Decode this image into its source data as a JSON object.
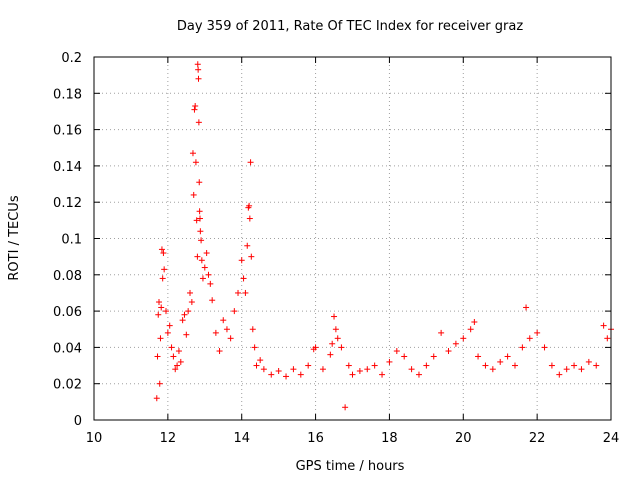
{
  "chart_data": {
    "type": "scatter",
    "title": "Day 359 of 2011, Rate Of TEC Index for receiver graz",
    "xlabel": "GPS time / hours",
    "ylabel": "ROTI / TECUs",
    "xlim": [
      10,
      24
    ],
    "ylim": [
      0,
      0.2
    ],
    "x_ticks": [
      10,
      12,
      14,
      16,
      18,
      20,
      22,
      24
    ],
    "x_tick_labels": [
      "10",
      "12",
      "14",
      "16",
      "18",
      "20",
      "22",
      "24"
    ],
    "y_ticks": [
      0,
      0.02,
      0.04,
      0.06,
      0.08,
      0.1,
      0.12,
      0.14,
      0.16,
      0.18,
      0.2
    ],
    "y_tick_labels": [
      "0",
      "0.02",
      "0.04",
      "0.06",
      "0.08",
      "0.1",
      "0.12",
      "0.14",
      "0.16",
      "0.18",
      "0.2"
    ],
    "grid": true,
    "marker": "+",
    "color": "#ff0000",
    "series": [
      {
        "name": "ROTI",
        "points": [
          [
            11.7,
            0.012
          ],
          [
            11.72,
            0.035
          ],
          [
            11.74,
            0.058
          ],
          [
            11.76,
            0.065
          ],
          [
            11.78,
            0.02
          ],
          [
            11.8,
            0.045
          ],
          [
            11.82,
            0.062
          ],
          [
            11.84,
            0.094
          ],
          [
            11.86,
            0.078
          ],
          [
            11.88,
            0.092
          ],
          [
            11.9,
            0.083
          ],
          [
            11.95,
            0.06
          ],
          [
            12.0,
            0.048
          ],
          [
            12.05,
            0.052
          ],
          [
            12.1,
            0.04
          ],
          [
            12.15,
            0.035
          ],
          [
            12.2,
            0.028
          ],
          [
            12.25,
            0.03
          ],
          [
            12.3,
            0.038
          ],
          [
            12.35,
            0.032
          ],
          [
            12.4,
            0.055
          ],
          [
            12.45,
            0.058
          ],
          [
            12.5,
            0.047
          ],
          [
            12.55,
            0.06
          ],
          [
            12.6,
            0.07
          ],
          [
            12.65,
            0.065
          ],
          [
            12.68,
            0.147
          ],
          [
            12.7,
            0.124
          ],
          [
            12.72,
            0.171
          ],
          [
            12.74,
            0.173
          ],
          [
            12.76,
            0.142
          ],
          [
            12.78,
            0.11
          ],
          [
            12.8,
            0.09
          ],
          [
            12.81,
            0.196
          ],
          [
            12.82,
            0.193
          ],
          [
            12.83,
            0.188
          ],
          [
            12.84,
            0.164
          ],
          [
            12.85,
            0.131
          ],
          [
            12.86,
            0.115
          ],
          [
            12.87,
            0.111
          ],
          [
            12.88,
            0.104
          ],
          [
            12.9,
            0.099
          ],
          [
            12.92,
            0.088
          ],
          [
            12.95,
            0.078
          ],
          [
            13.0,
            0.084
          ],
          [
            13.05,
            0.092
          ],
          [
            13.1,
            0.08
          ],
          [
            13.15,
            0.075
          ],
          [
            13.2,
            0.066
          ],
          [
            13.3,
            0.048
          ],
          [
            13.4,
            0.038
          ],
          [
            13.5,
            0.055
          ],
          [
            13.6,
            0.05
          ],
          [
            13.7,
            0.045
          ],
          [
            13.8,
            0.06
          ],
          [
            13.9,
            0.07
          ],
          [
            14.0,
            0.088
          ],
          [
            14.05,
            0.078
          ],
          [
            14.1,
            0.07
          ],
          [
            14.15,
            0.096
          ],
          [
            14.18,
            0.117
          ],
          [
            14.2,
            0.118
          ],
          [
            14.22,
            0.111
          ],
          [
            14.24,
            0.142
          ],
          [
            14.26,
            0.09
          ],
          [
            14.3,
            0.05
          ],
          [
            14.35,
            0.04
          ],
          [
            14.4,
            0.03
          ],
          [
            14.5,
            0.033
          ],
          [
            14.6,
            0.028
          ],
          [
            14.8,
            0.025
          ],
          [
            15.0,
            0.027
          ],
          [
            15.2,
            0.024
          ],
          [
            15.4,
            0.028
          ],
          [
            15.6,
            0.025
          ],
          [
            15.8,
            0.03
          ],
          [
            15.95,
            0.039
          ],
          [
            16.0,
            0.04
          ],
          [
            16.2,
            0.028
          ],
          [
            16.4,
            0.036
          ],
          [
            16.45,
            0.042
          ],
          [
            16.5,
            0.057
          ],
          [
            16.55,
            0.05
          ],
          [
            16.6,
            0.045
          ],
          [
            16.7,
            0.04
          ],
          [
            16.8,
            0.007
          ],
          [
            16.9,
            0.03
          ],
          [
            17.0,
            0.025
          ],
          [
            17.2,
            0.027
          ],
          [
            17.4,
            0.028
          ],
          [
            17.6,
            0.03
          ],
          [
            17.8,
            0.025
          ],
          [
            18.0,
            0.032
          ],
          [
            18.2,
            0.038
          ],
          [
            18.4,
            0.035
          ],
          [
            18.6,
            0.028
          ],
          [
            18.8,
            0.025
          ],
          [
            19.0,
            0.03
          ],
          [
            19.2,
            0.035
          ],
          [
            19.4,
            0.048
          ],
          [
            19.6,
            0.038
          ],
          [
            19.8,
            0.042
          ],
          [
            20.0,
            0.045
          ],
          [
            20.2,
            0.05
          ],
          [
            20.3,
            0.054
          ],
          [
            20.4,
            0.035
          ],
          [
            20.6,
            0.03
          ],
          [
            20.8,
            0.028
          ],
          [
            21.0,
            0.032
          ],
          [
            21.2,
            0.035
          ],
          [
            21.4,
            0.03
          ],
          [
            21.6,
            0.04
          ],
          [
            21.7,
            0.062
          ],
          [
            21.8,
            0.045
          ],
          [
            22.0,
            0.048
          ],
          [
            22.2,
            0.04
          ],
          [
            22.4,
            0.03
          ],
          [
            22.6,
            0.025
          ],
          [
            22.8,
            0.028
          ],
          [
            23.0,
            0.03
          ],
          [
            23.2,
            0.028
          ],
          [
            23.4,
            0.032
          ],
          [
            23.6,
            0.03
          ],
          [
            23.8,
            0.052
          ],
          [
            23.9,
            0.045
          ],
          [
            24.0,
            0.05
          ]
        ]
      }
    ]
  }
}
